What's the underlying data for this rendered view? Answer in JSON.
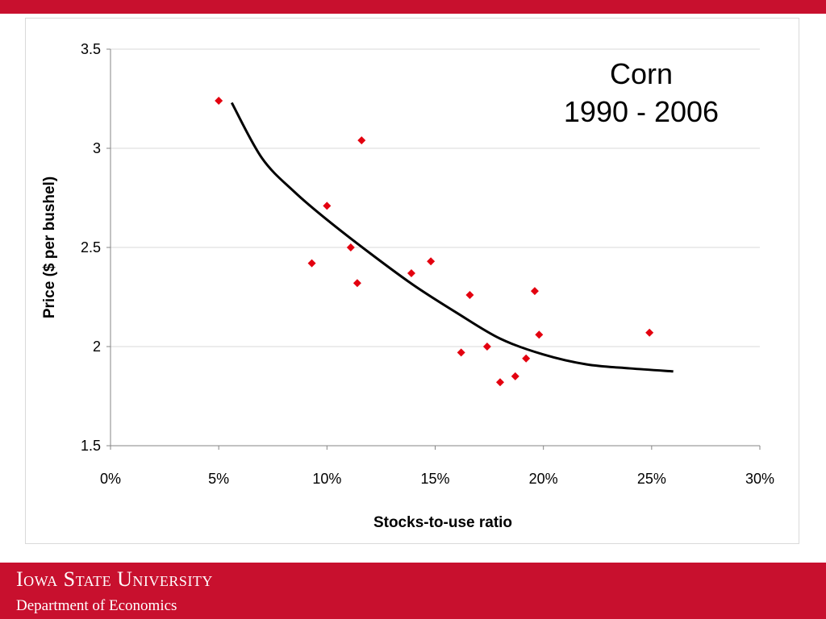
{
  "header": {
    "accent_color": "#c8102e"
  },
  "chart_data": {
    "type": "scatter",
    "title_lines": [
      "Corn",
      "1990 - 2006"
    ],
    "xlabel": "Stocks-to-use ratio",
    "ylabel": "Price ($ per bushel)",
    "xlim": [
      0,
      30
    ],
    "ylim": [
      1.5,
      3.5
    ],
    "x_ticks": [
      0,
      5,
      10,
      15,
      20,
      25,
      30
    ],
    "x_tick_labels": [
      "0%",
      "5%",
      "10%",
      "15%",
      "20%",
      "25%",
      "30%"
    ],
    "y_ticks": [
      1.5,
      2,
      2.5,
      3,
      3.5
    ],
    "y_tick_labels": [
      "1.5",
      "2",
      "2.5",
      "3",
      "3.5"
    ],
    "grid": "horizontal",
    "legend": "none",
    "marker_color": "#e3000f",
    "line_color": "#000000",
    "points": [
      {
        "x": 5.0,
        "y": 3.24
      },
      {
        "x": 9.3,
        "y": 2.42
      },
      {
        "x": 10.0,
        "y": 2.71
      },
      {
        "x": 11.1,
        "y": 2.5
      },
      {
        "x": 11.4,
        "y": 2.32
      },
      {
        "x": 11.6,
        "y": 3.04
      },
      {
        "x": 13.9,
        "y": 2.37
      },
      {
        "x": 14.8,
        "y": 2.43
      },
      {
        "x": 16.2,
        "y": 1.97
      },
      {
        "x": 16.6,
        "y": 2.26
      },
      {
        "x": 17.4,
        "y": 2.0
      },
      {
        "x": 18.0,
        "y": 1.82
      },
      {
        "x": 18.7,
        "y": 1.85
      },
      {
        "x": 19.2,
        "y": 1.94
      },
      {
        "x": 19.6,
        "y": 2.28
      },
      {
        "x": 19.8,
        "y": 2.06
      },
      {
        "x": 24.9,
        "y": 2.07
      }
    ],
    "trend_line": [
      {
        "x": 5.6,
        "y": 3.23
      },
      {
        "x": 7.0,
        "y": 2.95
      },
      {
        "x": 8.5,
        "y": 2.78
      },
      {
        "x": 10.0,
        "y": 2.64
      },
      {
        "x": 12.0,
        "y": 2.47
      },
      {
        "x": 14.0,
        "y": 2.31
      },
      {
        "x": 16.0,
        "y": 2.17
      },
      {
        "x": 18.0,
        "y": 2.04
      },
      {
        "x": 20.0,
        "y": 1.96
      },
      {
        "x": 22.0,
        "y": 1.91
      },
      {
        "x": 24.0,
        "y": 1.89
      },
      {
        "x": 26.0,
        "y": 1.875
      }
    ]
  },
  "footer": {
    "university": "Iowa State University",
    "department": "Department of Economics"
  }
}
